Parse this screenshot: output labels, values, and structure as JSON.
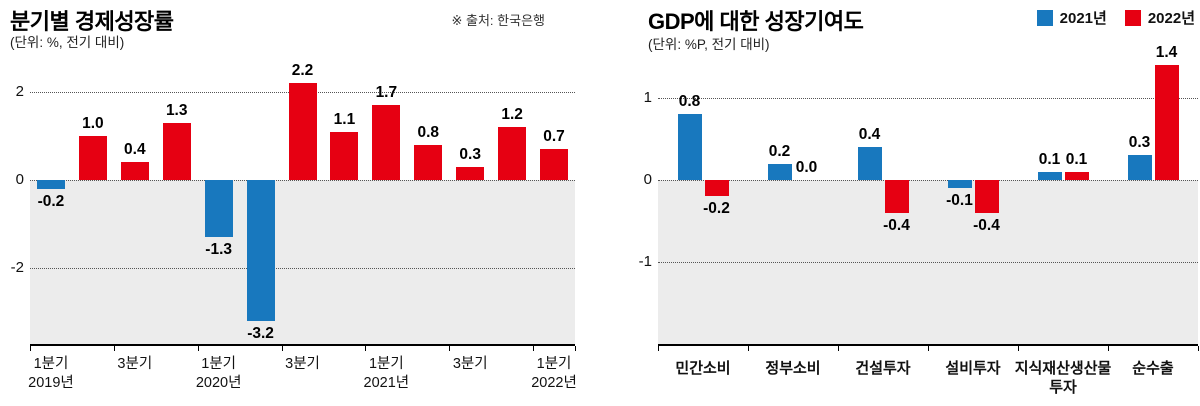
{
  "colors": {
    "positive_red": "#e60012",
    "negative_blue": "#1878be",
    "below_zero_area": "#ececec",
    "gridline": "#555555",
    "axis": "#000000"
  },
  "left_chart": {
    "title": "분기별 경제성장률",
    "subtitle": "(단위: %, 전기 대비)",
    "source": "※ 출처: 한국은행"
  },
  "right_chart": {
    "title": "GDP에 대한 성장기여도",
    "subtitle": "(단위: %P, 전기 대비)",
    "legend": [
      {
        "label": "2021년",
        "color": "#1878be"
      },
      {
        "label": "2022년",
        "color": "#e60012"
      }
    ]
  },
  "chart_data": [
    {
      "type": "bar",
      "title": "분기별 경제성장률",
      "unit_note": "(단위: %, 전기 대비)",
      "source": "※ 출처: 한국은행",
      "categories": [
        "2019 1분기",
        "2019 2분기",
        "2019 3분기",
        "2019 4분기",
        "2020 1분기",
        "2020 2분기",
        "2020 3분기",
        "2020 4분기",
        "2021 1분기",
        "2021 2분기",
        "2021 3분기",
        "2021 4분기",
        "2022 1분기"
      ],
      "values": [
        -0.2,
        1.0,
        0.4,
        1.3,
        -1.3,
        -3.2,
        2.2,
        1.1,
        1.7,
        0.8,
        0.3,
        1.2,
        0.7
      ],
      "x_tick_labels": [
        {
          "index": 0,
          "line1": "1분기",
          "line2": "2019년"
        },
        {
          "index": 2,
          "line1": "3분기",
          "line2": ""
        },
        {
          "index": 4,
          "line1": "1분기",
          "line2": "2020년"
        },
        {
          "index": 6,
          "line1": "3분기",
          "line2": ""
        },
        {
          "index": 8,
          "line1": "1분기",
          "line2": "2021년"
        },
        {
          "index": 10,
          "line1": "3분기",
          "line2": ""
        },
        {
          "index": 12,
          "line1": "1분기",
          "line2": "2022년"
        }
      ],
      "y_ticks": [
        2,
        0,
        -2
      ],
      "ylim": [
        -3.75,
        2.7
      ],
      "grid": "dotted-horizontal",
      "value_labels": true,
      "bar_color_rule": "positive bars red, negative bars blue"
    },
    {
      "type": "bar",
      "title": "GDP에 대한 성장기여도",
      "unit_note": "(단위: %P, 전기 대비)",
      "categories": [
        "민간소비",
        "정부소비",
        "건설투자",
        "설비투자",
        "지식재산생산물 투자",
        "순수출"
      ],
      "category_label_lines": [
        [
          "민간소비"
        ],
        [
          "정부소비"
        ],
        [
          "건설투자"
        ],
        [
          "설비투자"
        ],
        [
          "지식재산생산물",
          "투자"
        ],
        [
          "순수출"
        ]
      ],
      "series": [
        {
          "name": "2021년",
          "color": "#1878be",
          "values": [
            0.8,
            0.2,
            0.4,
            -0.1,
            0.1,
            0.3
          ]
        },
        {
          "name": "2022년",
          "color": "#e60012",
          "values": [
            -0.2,
            0.0,
            -0.4,
            -0.4,
            0.1,
            1.4
          ]
        }
      ],
      "y_ticks": [
        1,
        0,
        -1
      ],
      "ylim": [
        -2.0,
        1.46
      ],
      "grid": "dotted-horizontal",
      "value_labels": true,
      "legend_position": "top-right"
    }
  ]
}
